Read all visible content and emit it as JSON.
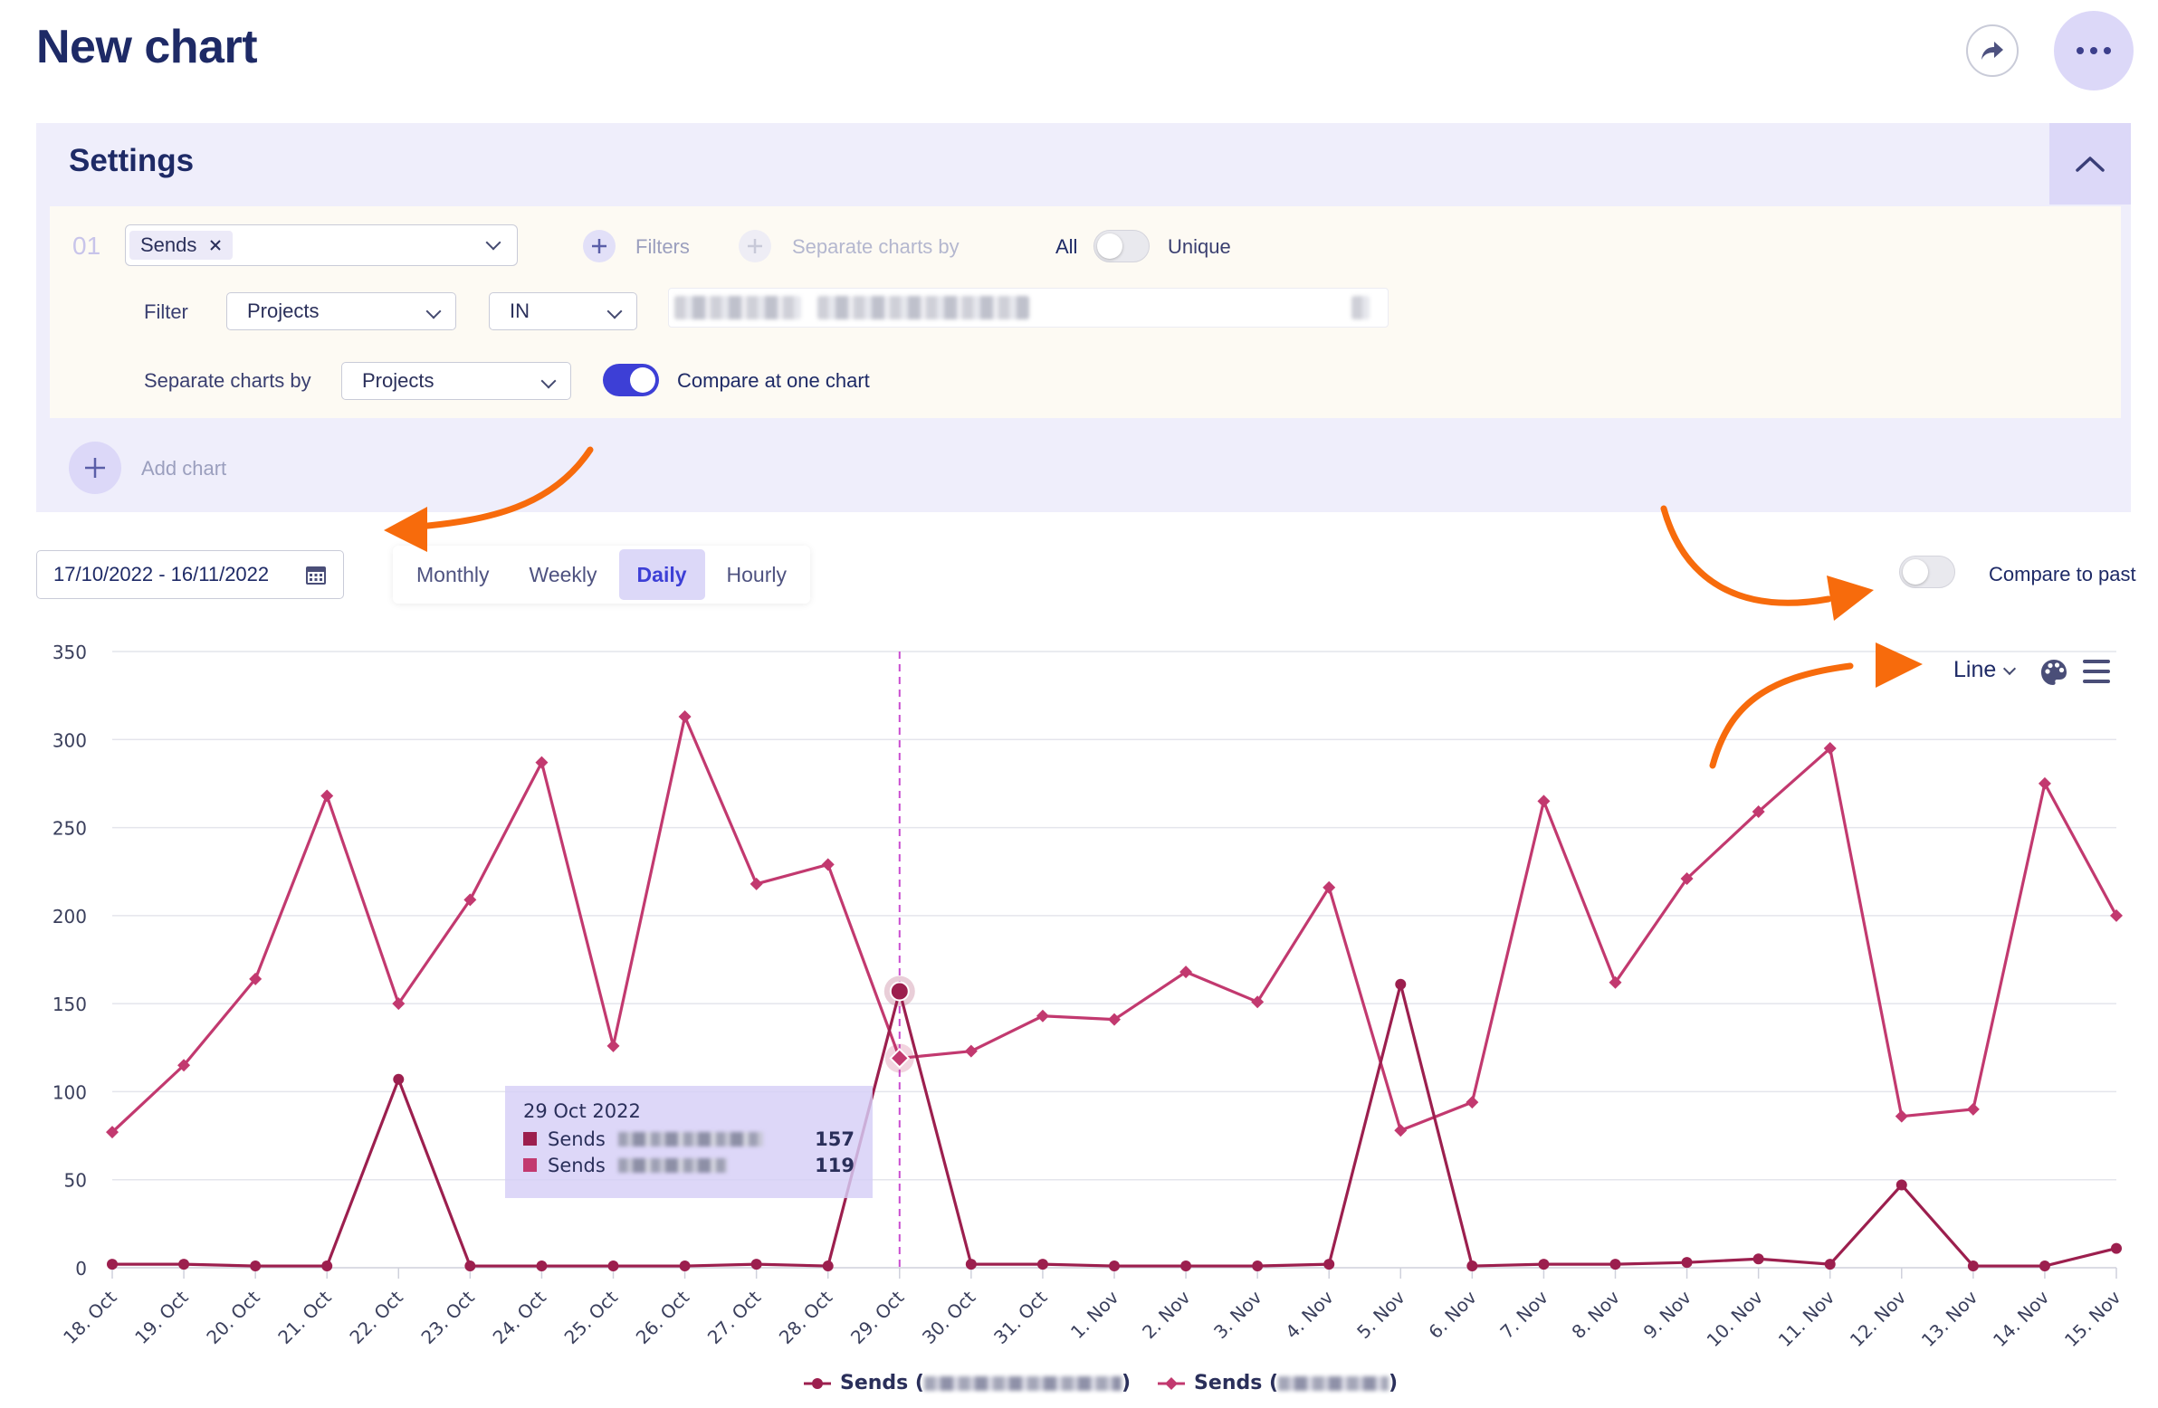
{
  "page": {
    "title": "New chart"
  },
  "header": {
    "share_icon": "share-arrow-icon",
    "more_icon": "more-dots-icon"
  },
  "settings": {
    "title": "Settings",
    "collapse_icon": "chevron-up-icon",
    "query": {
      "number": "01",
      "metric_chip": "Sends",
      "filters_label": "Filters",
      "separate_label": "Separate charts by",
      "mode_all": "All",
      "mode_unique": "Unique",
      "unique_enabled": false,
      "filter_label": "Filter",
      "filter_field": "Projects",
      "filter_operator": "IN",
      "separate_by_label": "Separate charts by",
      "separate_by_value": "Projects",
      "compare_enabled": true,
      "compare_label": "Compare at one chart"
    },
    "add_chart_label": "Add chart"
  },
  "toolbar": {
    "date_range": "17/10/2022 - 16/11/2022",
    "calendar_icon": "calendar-icon",
    "granularity": [
      {
        "label": "Monthly",
        "active": false
      },
      {
        "label": "Weekly",
        "active": false
      },
      {
        "label": "Daily",
        "active": true
      },
      {
        "label": "Hourly",
        "active": false
      }
    ],
    "compare_to_past_label": "Compare to past",
    "compare_to_past_enabled": false,
    "chart_type": "Line",
    "palette_icon": "palette-icon",
    "menu_icon": "hamburger-menu-icon"
  },
  "chart_data": {
    "type": "line",
    "categories": [
      "18. Oct",
      "19. Oct",
      "20. Oct",
      "21. Oct",
      "22. Oct",
      "23. Oct",
      "24. Oct",
      "25. Oct",
      "26. Oct",
      "27. Oct",
      "28. Oct",
      "29. Oct",
      "30. Oct",
      "31. Oct",
      "1. Nov",
      "2. Nov",
      "3. Nov",
      "4. Nov",
      "5. Nov",
      "6. Nov",
      "7. Nov",
      "8. Nov",
      "9. Nov",
      "10. Nov",
      "11. Nov",
      "12. Nov",
      "13. Nov",
      "14. Nov",
      "15. Nov"
    ],
    "y_ticks": [
      0,
      50,
      100,
      150,
      200,
      250,
      300,
      350
    ],
    "ylim": [
      0,
      350
    ],
    "grid": true,
    "series": [
      {
        "name": "Sends",
        "color": "#9c1f4e",
        "marker": "circle",
        "values": [
          2,
          2,
          1,
          1,
          107,
          1,
          1,
          1,
          1,
          2,
          1,
          157,
          2,
          2,
          1,
          1,
          1,
          2,
          161,
          1,
          2,
          2,
          3,
          5,
          2,
          47,
          1,
          1,
          11
        ]
      },
      {
        "name": "Sends",
        "color": "#c2396f",
        "marker": "diamond",
        "values": [
          77,
          115,
          164,
          268,
          150,
          209,
          287,
          126,
          313,
          218,
          229,
          119,
          123,
          143,
          141,
          168,
          151,
          216,
          78,
          94,
          265,
          162,
          221,
          259,
          295,
          86,
          90,
          275,
          200
        ]
      }
    ],
    "crosshair_index": 11,
    "tooltip": {
      "date": "29 Oct 2022",
      "rows": [
        {
          "label": "Sends",
          "value": "157",
          "color": "#9c1f4e"
        },
        {
          "label": "Sends",
          "value": "119",
          "color": "#c2396f"
        }
      ]
    },
    "legend": [
      {
        "label": "Sends (",
        "suffix": ")",
        "color": "#9c1f4e",
        "marker": "circle"
      },
      {
        "label": "Sends (",
        "suffix": ")",
        "color": "#c2396f",
        "marker": "diamond"
      }
    ],
    "legend_position": "bottom-center"
  }
}
